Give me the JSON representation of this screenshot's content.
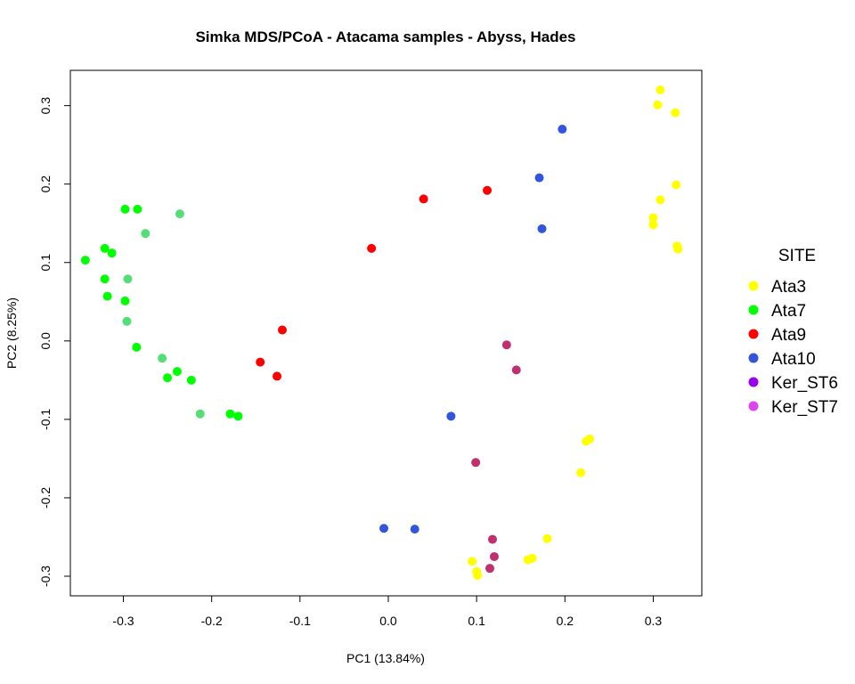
{
  "chart_data": {
    "type": "scatter",
    "title": "Simka MDS/PCoA - Atacama samples - Abyss, Hades",
    "xlabel": "PC1 (13.84%)",
    "ylabel": "PC2 (8.25%)",
    "xlim": [
      -0.36,
      0.355
    ],
    "ylim": [
      -0.325,
      0.345
    ],
    "xticks": [
      -0.3,
      -0.2,
      -0.1,
      0.0,
      0.1,
      0.2,
      0.3
    ],
    "xtick_labels": [
      "-0.3",
      "-0.2",
      "-0.1",
      "0.0",
      "0.1",
      "0.2",
      "0.3"
    ],
    "yticks": [
      -0.3,
      -0.2,
      -0.1,
      0.0,
      0.1,
      0.2,
      0.3
    ],
    "ytick_labels": [
      "-0.3",
      "-0.2",
      "-0.1",
      "0.0",
      "0.1",
      "0.2",
      "0.3"
    ],
    "grid": false,
    "legend": {
      "title": "SITE",
      "placement": "right",
      "entries": [
        {
          "label": "Ata3",
          "color": "#FFFF00"
        },
        {
          "label": "Ata7",
          "color": "#00FF00"
        },
        {
          "label": "Ata9",
          "color": "#FF0000"
        },
        {
          "label": "Ata10",
          "color": "#3355DD"
        },
        {
          "label": "Ker_ST6",
          "color": "#9900EE"
        },
        {
          "label": "Ker_ST7",
          "color": "#DD44EE"
        }
      ]
    },
    "points": [
      {
        "x": 0.308,
        "y": 0.32,
        "color": "#FFFF00"
      },
      {
        "x": 0.305,
        "y": 0.301,
        "color": "#FFFF00"
      },
      {
        "x": 0.325,
        "y": 0.291,
        "color": "#FFFF00"
      },
      {
        "x": 0.326,
        "y": 0.199,
        "color": "#FFFF00"
      },
      {
        "x": 0.308,
        "y": 0.18,
        "color": "#FFFF00"
      },
      {
        "x": 0.3,
        "y": 0.157,
        "color": "#FFFF00"
      },
      {
        "x": 0.3,
        "y": 0.148,
        "color": "#FFFF00"
      },
      {
        "x": 0.327,
        "y": 0.121,
        "color": "#FFFF00"
      },
      {
        "x": 0.328,
        "y": 0.117,
        "color": "#FFFF00"
      },
      {
        "x": 0.228,
        "y": -0.125,
        "color": "#FFFF00"
      },
      {
        "x": 0.224,
        "y": -0.128,
        "color": "#FFFF00"
      },
      {
        "x": 0.218,
        "y": -0.168,
        "color": "#FFFF00"
      },
      {
        "x": 0.18,
        "y": -0.252,
        "color": "#FFFF00"
      },
      {
        "x": 0.163,
        "y": -0.277,
        "color": "#FFFF00"
      },
      {
        "x": 0.158,
        "y": -0.279,
        "color": "#FFFF00"
      },
      {
        "x": 0.095,
        "y": -0.281,
        "color": "#FFFF00"
      },
      {
        "x": 0.1,
        "y": -0.294,
        "color": "#FFFF00"
      },
      {
        "x": 0.101,
        "y": -0.299,
        "color": "#FFFF00"
      },
      {
        "x": -0.343,
        "y": 0.103,
        "color": "#00FF00"
      },
      {
        "x": -0.321,
        "y": 0.118,
        "color": "#00FF00"
      },
      {
        "x": -0.313,
        "y": 0.112,
        "color": "#00FF00"
      },
      {
        "x": -0.298,
        "y": 0.168,
        "color": "#00FF00"
      },
      {
        "x": -0.284,
        "y": 0.168,
        "color": "#00FF00"
      },
      {
        "x": -0.236,
        "y": 0.162,
        "color": "#55DD77"
      },
      {
        "x": -0.275,
        "y": 0.137,
        "color": "#55DD77"
      },
      {
        "x": -0.321,
        "y": 0.079,
        "color": "#00FF00"
      },
      {
        "x": -0.295,
        "y": 0.079,
        "color": "#55DD77"
      },
      {
        "x": -0.318,
        "y": 0.057,
        "color": "#00FF00"
      },
      {
        "x": -0.298,
        "y": 0.051,
        "color": "#00FF00"
      },
      {
        "x": -0.296,
        "y": 0.025,
        "color": "#55DD77"
      },
      {
        "x": -0.285,
        "y": -0.008,
        "color": "#00FF00"
      },
      {
        "x": -0.256,
        "y": -0.022,
        "color": "#55DD77"
      },
      {
        "x": -0.239,
        "y": -0.039,
        "color": "#00FF00"
      },
      {
        "x": -0.25,
        "y": -0.047,
        "color": "#00FF00"
      },
      {
        "x": -0.223,
        "y": -0.05,
        "color": "#00FF00"
      },
      {
        "x": -0.213,
        "y": -0.093,
        "color": "#55DD77"
      },
      {
        "x": -0.179,
        "y": -0.093,
        "color": "#00FF00"
      },
      {
        "x": -0.17,
        "y": -0.096,
        "color": "#00FF00"
      },
      {
        "x": 0.112,
        "y": 0.192,
        "color": "#FF0000"
      },
      {
        "x": 0.04,
        "y": 0.181,
        "color": "#FF0000"
      },
      {
        "x": -0.019,
        "y": 0.118,
        "color": "#FF0000"
      },
      {
        "x": -0.12,
        "y": 0.014,
        "color": "#FF0000"
      },
      {
        "x": -0.145,
        "y": -0.027,
        "color": "#FF0000"
      },
      {
        "x": -0.126,
        "y": -0.045,
        "color": "#FF0000"
      },
      {
        "x": 0.197,
        "y": 0.27,
        "color": "#3355DD"
      },
      {
        "x": 0.171,
        "y": 0.208,
        "color": "#3355DD"
      },
      {
        "x": 0.174,
        "y": 0.143,
        "color": "#3355DD"
      },
      {
        "x": 0.071,
        "y": -0.096,
        "color": "#3355DD"
      },
      {
        "x": -0.005,
        "y": -0.239,
        "color": "#3355DD"
      },
      {
        "x": 0.03,
        "y": -0.24,
        "color": "#3355DD"
      },
      {
        "x": 0.134,
        "y": -0.005,
        "color": "#C03070"
      },
      {
        "x": 0.145,
        "y": -0.037,
        "color": "#C03070"
      },
      {
        "x": 0.099,
        "y": -0.155,
        "color": "#C03070"
      },
      {
        "x": 0.118,
        "y": -0.253,
        "color": "#C03070"
      },
      {
        "x": 0.12,
        "y": -0.275,
        "color": "#C03070"
      },
      {
        "x": 0.115,
        "y": -0.29,
        "color": "#C03070"
      }
    ]
  }
}
